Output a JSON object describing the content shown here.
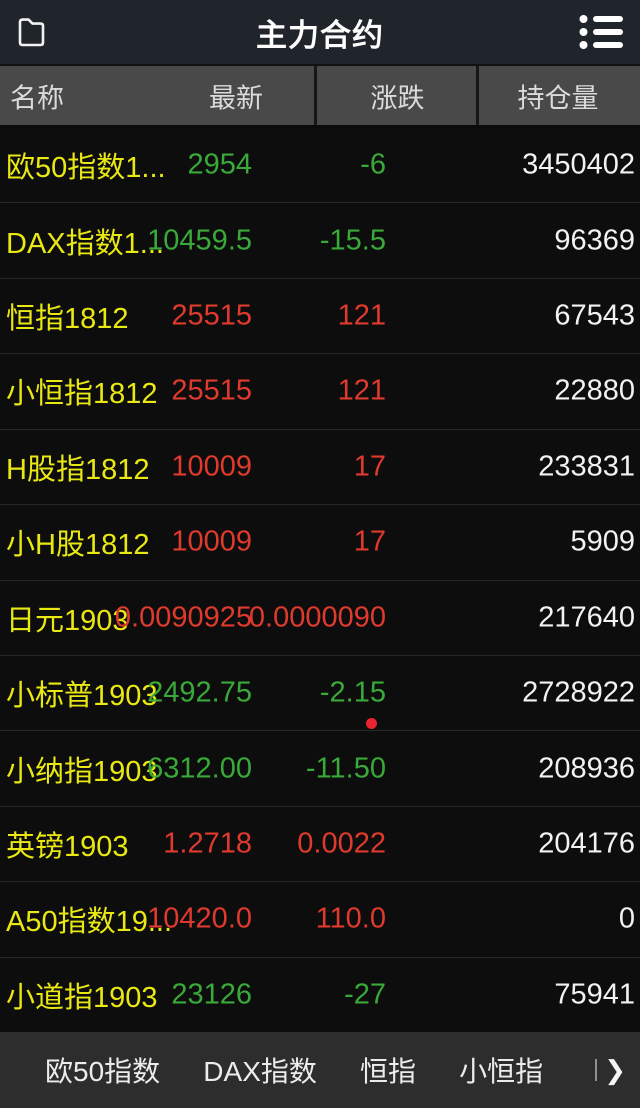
{
  "nav": {
    "title": "主力合约",
    "left_icon": "folder-icon",
    "right_icon": "list-menu-icon"
  },
  "table": {
    "headers": {
      "name": "名称",
      "last": "最新",
      "change": "涨跌",
      "open_interest": "持仓量"
    },
    "rows": [
      {
        "name": "欧50指数1...",
        "last": "2954",
        "change": "-6",
        "open_interest": "3450402",
        "direction": "down",
        "marker": false
      },
      {
        "name": "DAX指数1...",
        "last": "10459.5",
        "change": "-15.5",
        "open_interest": "96369",
        "direction": "down",
        "marker": false
      },
      {
        "name": "恒指1812",
        "last": "25515",
        "change": "121",
        "open_interest": "67543",
        "direction": "up",
        "marker": false
      },
      {
        "name": "小恒指1812",
        "last": "25515",
        "change": "121",
        "open_interest": "22880",
        "direction": "up",
        "marker": false
      },
      {
        "name": "H股指1812",
        "last": "10009",
        "change": "17",
        "open_interest": "233831",
        "direction": "up",
        "marker": false
      },
      {
        "name": "小H股1812",
        "last": "10009",
        "change": "17",
        "open_interest": "5909",
        "direction": "up",
        "marker": false
      },
      {
        "name": "日元1903",
        "last": "0.0090925",
        "change": "0.0000090",
        "open_interest": "217640",
        "direction": "up",
        "marker": false
      },
      {
        "name": "小标普1903",
        "last": "2492.75",
        "change": "-2.15",
        "open_interest": "2728922",
        "direction": "down",
        "marker": true
      },
      {
        "name": "小纳指1903",
        "last": "6312.00",
        "change": "-11.50",
        "open_interest": "208936",
        "direction": "down",
        "marker": false
      },
      {
        "name": "英镑1903",
        "last": "1.2718",
        "change": "0.0022",
        "open_interest": "204176",
        "direction": "up",
        "marker": false
      },
      {
        "name": "A50指数19...",
        "last": "10420.0",
        "change": "110.0",
        "open_interest": "0",
        "direction": "up",
        "marker": false
      },
      {
        "name": "小道指1903",
        "last": "23126",
        "change": "-27",
        "open_interest": "75941",
        "direction": "down",
        "marker": false
      }
    ]
  },
  "bottom_tabs": {
    "items": [
      "欧50指数",
      "DAX指数",
      "恒指",
      "小恒指"
    ],
    "more_arrow": "❯"
  },
  "colors": {
    "up_red": "#df3a2d",
    "down_green": "#3aa93a",
    "name_yellow": "#eae813",
    "neutral_white": "#f2f2f2",
    "navbar_bg": "#20242b",
    "header_bg": "#494949",
    "body_bg": "#0c0d0c",
    "tabbar_bg": "#2d2d2d",
    "marker_red": "#ea2330"
  }
}
